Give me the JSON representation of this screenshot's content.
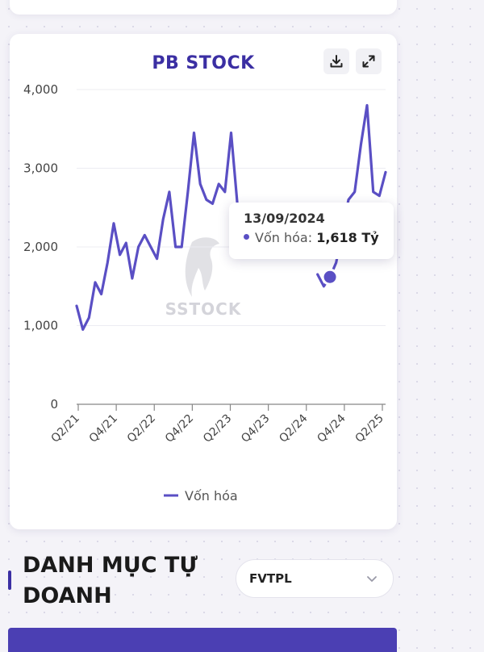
{
  "chart_data": {
    "type": "line",
    "title": "PB STOCK",
    "xlabel": "",
    "ylabel": "",
    "ylim": [
      0,
      4000
    ],
    "yticks": [
      0,
      1000,
      2000,
      3000,
      4000
    ],
    "ytick_labels": [
      "0",
      "1,000",
      "2,000",
      "3,000",
      "4,000"
    ],
    "x_tick_labels": [
      "Q2/21",
      "Q4/21",
      "Q2/22",
      "Q4/22",
      "Q2/23",
      "Q4/23",
      "Q2/24",
      "Q4/24",
      "Q2/25"
    ],
    "grid": true,
    "legend": "bottom",
    "series": [
      {
        "name": "Vốn hóa",
        "color": "#5a4fc4",
        "points": [
          [
            "2021-04",
            1250
          ],
          [
            "2021-05",
            950
          ],
          [
            "2021-06",
            1100
          ],
          [
            "2021-07",
            1550
          ],
          [
            "2021-08",
            1400
          ],
          [
            "2021-09",
            1800
          ],
          [
            "2021-10",
            2300
          ],
          [
            "2021-11",
            1900
          ],
          [
            "2021-12",
            2050
          ],
          [
            "2022-01",
            1600
          ],
          [
            "2022-02",
            2000
          ],
          [
            "2022-03",
            2150
          ],
          [
            "2022-04",
            2000
          ],
          [
            "2022-05",
            1850
          ],
          [
            "2022-06",
            2350
          ],
          [
            "2022-07",
            2700
          ],
          [
            "2022-08",
            2000
          ],
          [
            "2022-09",
            2000
          ],
          [
            "2022-10",
            2700
          ],
          [
            "2022-11",
            3450
          ],
          [
            "2022-12",
            2800
          ],
          [
            "2023-01",
            2600
          ],
          [
            "2023-02",
            2550
          ],
          [
            "2023-03",
            2800
          ],
          [
            "2023-04",
            2700
          ],
          [
            "2023-05",
            3450
          ],
          [
            "2023-06",
            2550
          ],
          [
            "2024-07",
            1650
          ],
          [
            "2024-08",
            1500
          ],
          [
            "2024-09",
            1618
          ],
          [
            "2024-10",
            1800
          ],
          [
            "2024-11",
            2200
          ],
          [
            "2024-12",
            2600
          ],
          [
            "2025-01",
            2700
          ],
          [
            "2025-02",
            3300
          ],
          [
            "2025-03",
            3800
          ],
          [
            "2025-04",
            2700
          ],
          [
            "2025-05",
            2650
          ],
          [
            "2025-06",
            2950
          ]
        ]
      }
    ],
    "highlight": {
      "date": "13/09/2024",
      "label": "Vốn hóa:",
      "value": "1,618 Tỷ"
    }
  },
  "toolbar": {
    "download_icon": "download-icon",
    "expand_icon": "expand-icon"
  },
  "section": {
    "title": "DANH MỤC TỰ DOANH",
    "select_value": "FVTPL",
    "select_icon": "chevron-down-icon"
  },
  "watermark": "SSTOCK"
}
